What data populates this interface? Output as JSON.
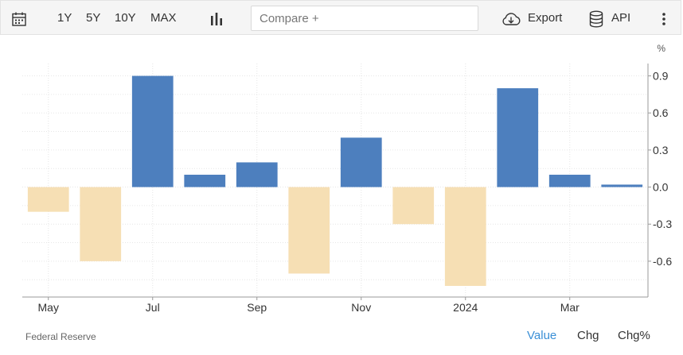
{
  "toolbar": {
    "ranges": [
      "1Y",
      "5Y",
      "10Y",
      "MAX"
    ],
    "compare_placeholder": "Compare +",
    "export_label": "Export",
    "api_label": "API"
  },
  "chart_data": {
    "type": "bar",
    "unit": "%",
    "categories": [
      "2023-05",
      "2023-06",
      "2023-07",
      "2023-08",
      "2023-09",
      "2023-10",
      "2023-11",
      "2023-12",
      "2024-01",
      "2024-02",
      "2024-03",
      "2024-04"
    ],
    "values": [
      -0.2,
      -0.6,
      0.9,
      0.1,
      0.2,
      -0.7,
      0.4,
      -0.3,
      -0.8,
      0.8,
      0.1,
      0.02
    ],
    "x_tick_labels": [
      "May",
      "Jul",
      "Sep",
      "Nov",
      "2024",
      "Mar"
    ],
    "y_ticks": [
      0.9,
      0.6,
      0.3,
      0.0,
      -0.3,
      -0.6
    ],
    "y_tick_labels": [
      "0.9",
      "0.6",
      "0.3",
      "0.0",
      "-0.3",
      "-0.6"
    ],
    "ylim": [
      -0.89,
      1.0
    ],
    "grid": true,
    "colors": {
      "positive": "#4d7fbe",
      "negative": "#f6dfb4"
    }
  },
  "footer": {
    "source": "Federal Reserve",
    "tabs": [
      "Value",
      "Chg",
      "Chg%"
    ],
    "active_tab": "Value",
    "active_color": "#3a8fd6"
  }
}
